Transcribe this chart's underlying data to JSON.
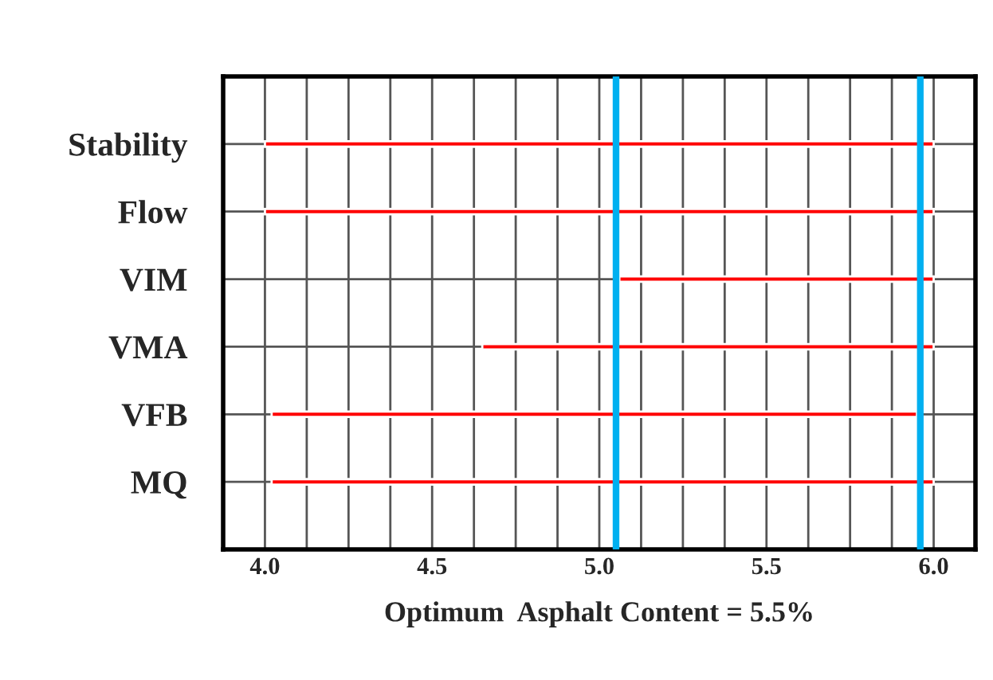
{
  "chart_data": {
    "type": "bar",
    "orientation": "horizontal",
    "categories": [
      "Stability",
      "Flow",
      "VIM",
      "VMA",
      "VFB",
      "MQ"
    ],
    "base": [
      4.0,
      4.0,
      5.06,
      4.65,
      4.02,
      4.02
    ],
    "values": [
      2.0,
      2.0,
      0.94,
      1.35,
      1.93,
      1.98
    ],
    "color": "#ff0000",
    "xlabel": "Optimum  Asphalt Content = 5.5%",
    "xlim": [
      3.875,
      6.125
    ],
    "xticks": [
      {
        "value": 3.875,
        "label": null
      },
      {
        "value": 4.0,
        "label": "4.0"
      },
      {
        "value": 4.125,
        "label": null
      },
      {
        "value": 4.25,
        "label": null
      },
      {
        "value": 4.375,
        "label": null
      },
      4.5,
      {
        "value": 4.625,
        "label": null
      },
      {
        "value": 4.75,
        "label": null
      },
      {
        "value": 4.875,
        "label": null
      },
      {
        "value": 5.0,
        "label": "5.0"
      },
      {
        "value": 5.125,
        "label": null
      },
      {
        "value": 5.25,
        "label": null
      },
      {
        "value": 5.375,
        "label": null
      },
      5.5,
      {
        "value": 5.625,
        "label": null
      },
      {
        "value": 5.75,
        "label": null
      },
      {
        "value": 5.875,
        "label": null
      },
      {
        "value": 6.0,
        "label": "6.0"
      }
    ],
    "ref_lines": [
      {
        "axis": "x",
        "value": 5.05,
        "color": "#00b0f0"
      },
      {
        "axis": "x",
        "value": 5.96,
        "color": "#00b0f0"
      }
    ],
    "grid": true,
    "legend": false
  }
}
